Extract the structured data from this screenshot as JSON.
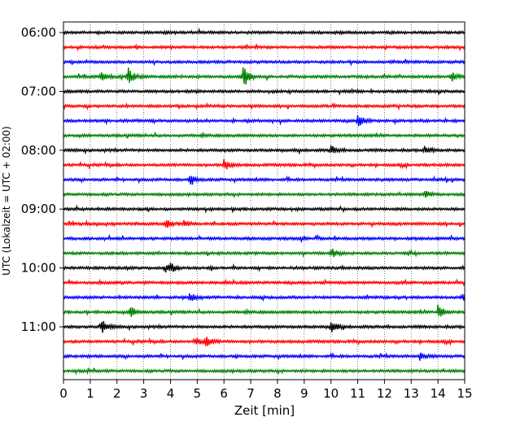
{
  "chart_data": {
    "type": "line",
    "subtype": "helicorder",
    "title": "",
    "xlabel": "Zeit  [min]",
    "ylabel": "UTC (Lokalzeit = UTC + 02:00)",
    "xlim": [
      0,
      15
    ],
    "x_ticks": [
      "0",
      "1",
      "2",
      "3",
      "4",
      "5",
      "6",
      "7",
      "8",
      "9",
      "10",
      "11",
      "12",
      "13",
      "14",
      "15"
    ],
    "y_tick_labels": [
      "06:00",
      "07:00",
      "08:00",
      "09:00",
      "10:00",
      "11:00"
    ],
    "y_tick_rows": [
      0,
      4,
      8,
      12,
      16,
      20
    ],
    "start_time": "06:00",
    "line_interval_min": 15,
    "color_cycle": [
      "#000000",
      "#ff0000",
      "#0000ff",
      "#008000"
    ],
    "vertical_grid": "dotted",
    "horizontal_grid": false,
    "events": [
      {
        "row": 3,
        "t": 1.4,
        "amp": 0.9
      },
      {
        "row": 3,
        "t": 2.4,
        "amp": 1.3
      },
      {
        "row": 3,
        "t": 6.7,
        "amp": 1.9
      },
      {
        "row": 3,
        "t": 14.5,
        "amp": 0.6
      },
      {
        "row": 6,
        "t": 11.0,
        "amp": 1.0
      },
      {
        "row": 8,
        "t": 10.0,
        "amp": 0.6
      },
      {
        "row": 8,
        "t": 13.5,
        "amp": 0.6
      },
      {
        "row": 9,
        "t": 6.0,
        "amp": 0.8
      },
      {
        "row": 10,
        "t": 4.7,
        "amp": 0.7
      },
      {
        "row": 11,
        "t": 13.5,
        "amp": 0.5
      },
      {
        "row": 13,
        "t": 3.8,
        "amp": 0.7
      },
      {
        "row": 13,
        "t": 4.5,
        "amp": 0.5
      },
      {
        "row": 15,
        "t": 10.0,
        "amp": 0.7
      },
      {
        "row": 16,
        "t": 3.8,
        "amp": 0.6
      },
      {
        "row": 16,
        "t": 4.0,
        "amp": 0.5
      },
      {
        "row": 18,
        "t": 4.7,
        "amp": 0.7
      },
      {
        "row": 18,
        "t": 14.9,
        "amp": 0.6
      },
      {
        "row": 19,
        "t": 2.5,
        "amp": 0.8
      },
      {
        "row": 19,
        "t": 14.0,
        "amp": 1.1
      },
      {
        "row": 20,
        "t": 1.4,
        "amp": 1.2
      },
      {
        "row": 20,
        "t": 10.0,
        "amp": 0.9
      },
      {
        "row": 21,
        "t": 4.9,
        "amp": 0.7
      },
      {
        "row": 21,
        "t": 5.3,
        "amp": 0.9
      },
      {
        "row": 22,
        "t": 13.3,
        "amp": 0.5
      }
    ]
  }
}
